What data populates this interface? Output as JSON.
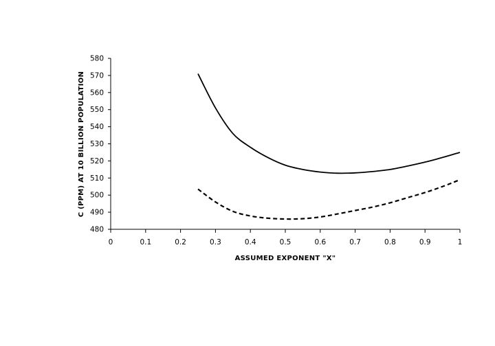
{
  "chart_data": {
    "type": "line",
    "title": "",
    "xlabel": "ASSUMED EXPONENT \"X\"",
    "ylabel": "C (PPM) AT 10 BILLION POPULATION",
    "xlim": [
      0,
      1
    ],
    "ylim": [
      480,
      580
    ],
    "x_ticks": [
      "0",
      "0.1",
      "0.2",
      "0.3",
      "0.4",
      "0.5",
      "0.6",
      "0.7",
      "0.8",
      "0.9",
      "1"
    ],
    "y_ticks": [
      "480",
      "490",
      "500",
      "510",
      "520",
      "530",
      "540",
      "550",
      "560",
      "570",
      "580"
    ],
    "grid": false,
    "legend": "none",
    "series": [
      {
        "style": "solid",
        "color": "#000000",
        "x": [
          0.25,
          0.3,
          0.35,
          0.4,
          0.45,
          0.5,
          0.55,
          0.6,
          0.65,
          0.7,
          0.75,
          0.8,
          0.85,
          0.9,
          0.95,
          1.0
        ],
        "y": [
          571,
          551,
          536,
          528,
          522,
          517.5,
          515,
          513.5,
          512.8,
          513,
          513.8,
          515,
          517,
          519.3,
          522,
          525
        ]
      },
      {
        "style": "dashed",
        "color": "#000000",
        "x": [
          0.25,
          0.3,
          0.35,
          0.4,
          0.45,
          0.5,
          0.55,
          0.6,
          0.65,
          0.7,
          0.75,
          0.8,
          0.85,
          0.9,
          0.95,
          1.0
        ],
        "y": [
          503.5,
          496,
          490.5,
          487.8,
          486.5,
          486,
          486.2,
          487.2,
          489,
          491,
          493,
          495.5,
          498.5,
          501.5,
          505,
          509
        ]
      }
    ]
  }
}
